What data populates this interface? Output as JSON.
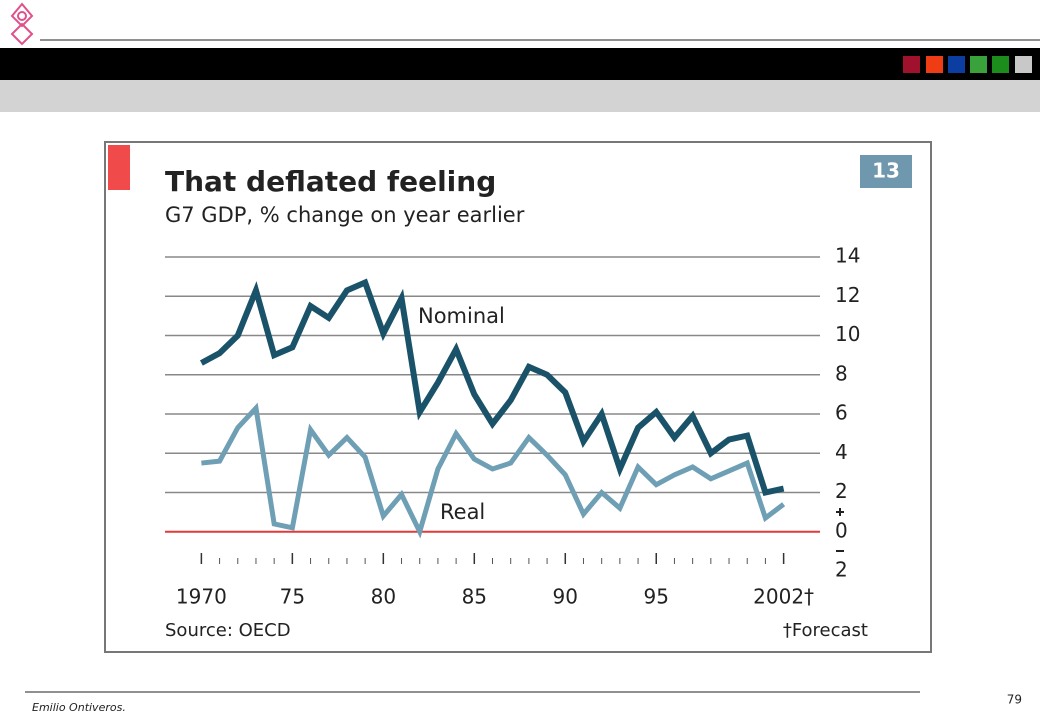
{
  "chart_data": {
    "type": "line",
    "title": "That deflated feeling",
    "subtitle": "G7 GDP, % change on year earlier",
    "badge": "13",
    "source": "Source: OECD",
    "note": "†Forecast",
    "x": [
      1970,
      1971,
      1972,
      1973,
      1974,
      1975,
      1976,
      1977,
      1978,
      1979,
      1980,
      1981,
      1982,
      1983,
      1984,
      1985,
      1986,
      1987,
      1988,
      1989,
      1990,
      1991,
      1992,
      1993,
      1994,
      1995,
      1996,
      1997,
      1998,
      1999,
      2000,
      2001,
      2002
    ],
    "series": [
      {
        "name": "Nominal",
        "color": "#1a5269",
        "values": [
          8.6,
          9.1,
          10.0,
          12.3,
          9.0,
          9.4,
          11.5,
          10.9,
          12.3,
          12.7,
          10.1,
          11.9,
          6.1,
          7.6,
          9.3,
          7.0,
          5.5,
          6.7,
          8.4,
          8.0,
          7.1,
          4.6,
          6.0,
          3.2,
          5.3,
          6.1,
          4.8,
          5.9,
          4.0,
          4.7,
          4.9,
          2.0,
          2.2
        ]
      },
      {
        "name": "Real",
        "color": "#6e9fb5",
        "values": [
          3.5,
          3.6,
          5.3,
          6.3,
          0.4,
          0.2,
          5.2,
          3.9,
          4.8,
          3.8,
          0.8,
          1.9,
          0.0,
          3.2,
          5.0,
          3.7,
          3.2,
          3.5,
          4.8,
          3.9,
          2.9,
          0.9,
          2.0,
          1.2,
          3.3,
          2.4,
          2.9,
          3.3,
          2.7,
          3.1,
          3.5,
          0.7,
          1.4
        ]
      }
    ],
    "xlim": [
      1968,
      2004
    ],
    "xticks": [
      {
        "value": 1970,
        "label": "1970"
      },
      {
        "value": 1975,
        "label": "75"
      },
      {
        "value": 1980,
        "label": "80"
      },
      {
        "value": 1985,
        "label": "85"
      },
      {
        "value": 1990,
        "label": "90"
      },
      {
        "value": 1995,
        "label": "95"
      },
      {
        "value": 2002,
        "label": "2002†"
      }
    ],
    "ylim": [
      -2,
      14
    ],
    "yticks": [
      14,
      12,
      10,
      8,
      6,
      4,
      2,
      0,
      {
        "value": -2,
        "label": "2"
      }
    ],
    "grid": true,
    "zero_line_color": "#e03a3a"
  },
  "footer": {
    "author": "Emilio Ontiveros.",
    "page": "79"
  }
}
